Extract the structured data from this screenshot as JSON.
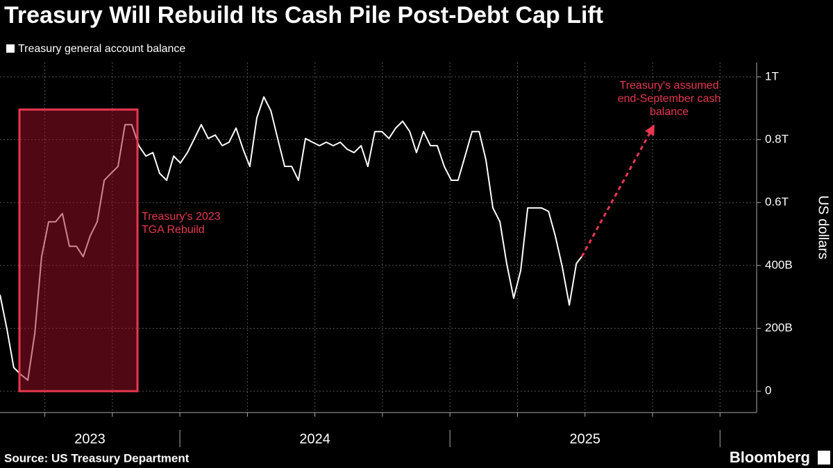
{
  "chart_data": {
    "type": "line",
    "title": "Treasury Will Rebuild Its Cash Pile Post-Debt Cap Lift",
    "y_axis_label": "US dollars",
    "source": "Source: US Treasury Department",
    "brand": "Bloomberg",
    "x": [
      2023.334,
      2023.36,
      2023.385,
      2023.411,
      2023.437,
      2023.463,
      2023.488,
      2023.514,
      2023.54,
      2023.565,
      2023.591,
      2023.617,
      2023.642,
      2023.668,
      2023.694,
      2023.72,
      2023.745,
      2023.771,
      2023.797,
      2023.822,
      2023.848,
      2023.874,
      2023.9,
      2023.925,
      2023.951,
      2023.977,
      2024.002,
      2024.028,
      2024.054,
      2024.079,
      2024.105,
      2024.131,
      2024.157,
      2024.182,
      2024.208,
      2024.234,
      2024.259,
      2024.285,
      2024.311,
      2024.337,
      2024.362,
      2024.388,
      2024.414,
      2024.439,
      2024.465,
      2024.491,
      2024.517,
      2024.542,
      2024.568,
      2024.594,
      2024.619,
      2024.645,
      2024.671,
      2024.696,
      2024.722,
      2024.748,
      2024.774,
      2024.799,
      2024.825,
      2024.851,
      2024.876,
      2024.902,
      2024.928,
      2024.953,
      2024.979,
      2025.005,
      2025.03,
      2025.056,
      2025.082,
      2025.108,
      2025.133,
      2025.159,
      2025.185,
      2025.21,
      2025.236,
      2025.262,
      2025.288,
      2025.313,
      2025.339,
      2025.365,
      2025.39,
      2025.416,
      2025.442,
      2025.468,
      2025.488
    ],
    "series": [
      {
        "name": "Treasury general account balance",
        "color": "#ffffff",
        "values": [
          307,
          196,
          75,
          53,
          35,
          185,
          428,
          539,
          539,
          565,
          461,
          461,
          428,
          494,
          539,
          671,
          693,
          715,
          848,
          848,
          781,
          748,
          759,
          693,
          671,
          748,
          726,
          759,
          804,
          848,
          804,
          815,
          781,
          792,
          837,
          770,
          715,
          870,
          936,
          892,
          804,
          715,
          715,
          671,
          804,
          792,
          781,
          792,
          781,
          792,
          770,
          759,
          781,
          715,
          826,
          826,
          804,
          837,
          859,
          826,
          759,
          826,
          781,
          781,
          715,
          671,
          671,
          748,
          826,
          826,
          737,
          583,
          539,
          406,
          296,
          384,
          583,
          583,
          583,
          572,
          494,
          395,
          274,
          406,
          428
        ]
      }
    ],
    "highlight": {
      "xlim": [
        2023.406,
        2023.843
      ],
      "ylim": [
        0,
        896
      ],
      "color": "#e8384f",
      "text": [
        "Treasury's 2023",
        "TGA Rebuild"
      ]
    },
    "projection": {
      "x": [
        2025.488,
        2025.75
      ],
      "values": [
        428,
        837
      ],
      "color": "#e8384f",
      "text": [
        "Treasury's assumed",
        "end-September cash",
        "balance"
      ]
    },
    "xlim": [
      2023.334,
      2026.097
    ],
    "ylim": [
      -68,
      1046
    ],
    "xticks": [
      {
        "value": 2023.667,
        "label": "2023"
      },
      {
        "value": 2024.5,
        "label": "2024"
      },
      {
        "value": 2025.5,
        "label": "2025"
      }
    ],
    "xseparators": [
      2024,
      2025,
      2026
    ],
    "xgrid": [
      2023.5,
      2023.75,
      2024,
      2024.25,
      2024.5,
      2024.75,
      2025,
      2025.25,
      2025.5,
      2025.75,
      2026
    ],
    "yticks": [
      0,
      {
        "value": 200,
        "label": "200B"
      },
      {
        "value": 400,
        "label": "400B"
      },
      {
        "value": 600,
        "label": "0.6T"
      },
      {
        "value": 800,
        "label": "0.8T"
      },
      {
        "value": 1000,
        "label": "1T"
      }
    ],
    "grid": true
  }
}
